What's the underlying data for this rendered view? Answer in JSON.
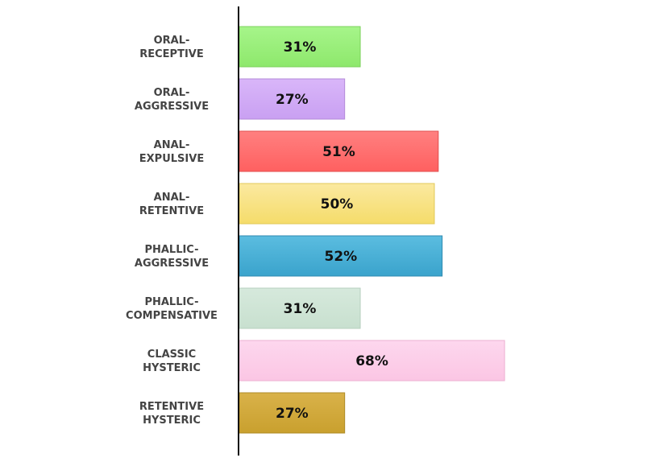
{
  "chart_data": {
    "type": "bar",
    "orientation": "horizontal",
    "categories": [
      [
        "ORAL-",
        "RECEPTIVE"
      ],
      [
        "ORAL-",
        "AGGRESSIVE"
      ],
      [
        "ANAL-",
        "EXPULSIVE"
      ],
      [
        "ANAL-",
        "RETENTIVE"
      ],
      [
        "PHALLIC-",
        "AGGRESSIVE"
      ],
      [
        "PHALLIC-",
        "COMPENSATIVE"
      ],
      [
        "CLASSIC",
        "HYSTERIC"
      ],
      [
        "RETENTIVE",
        "HYSTERIC"
      ]
    ],
    "values": [
      31,
      27,
      51,
      50,
      52,
      31,
      68,
      27
    ],
    "value_labels": [
      "31%",
      "27%",
      "51%",
      "50%",
      "52%",
      "31%",
      "68%",
      "27%"
    ],
    "colors": [
      {
        "top": "#a6f58a",
        "bottom": "#8ee86c",
        "stroke": "#7cd15c"
      },
      {
        "top": "#d9b6f9",
        "bottom": "#c9a0f2",
        "stroke": "#b38ad9"
      },
      {
        "top": "#ff8080",
        "bottom": "#ff6060",
        "stroke": "#e04e4e"
      },
      {
        "top": "#fbe9a0",
        "bottom": "#f5dc6a",
        "stroke": "#e0c858"
      },
      {
        "top": "#5bbde0",
        "bottom": "#3aa3cc",
        "stroke": "#2f8ab0"
      },
      {
        "top": "#d6e9dc",
        "bottom": "#c8e0cf",
        "stroke": "#b6cfbe"
      },
      {
        "top": "#fdd7ee",
        "bottom": "#fbc6e4",
        "stroke": "#ecb0d2"
      },
      {
        "top": "#d9b24a",
        "bottom": "#c9a02e",
        "stroke": "#ad8a24"
      }
    ],
    "xlim": [
      0,
      100
    ],
    "grid": false,
    "legend": "none",
    "title": "",
    "xlabel": "",
    "ylabel": ""
  }
}
